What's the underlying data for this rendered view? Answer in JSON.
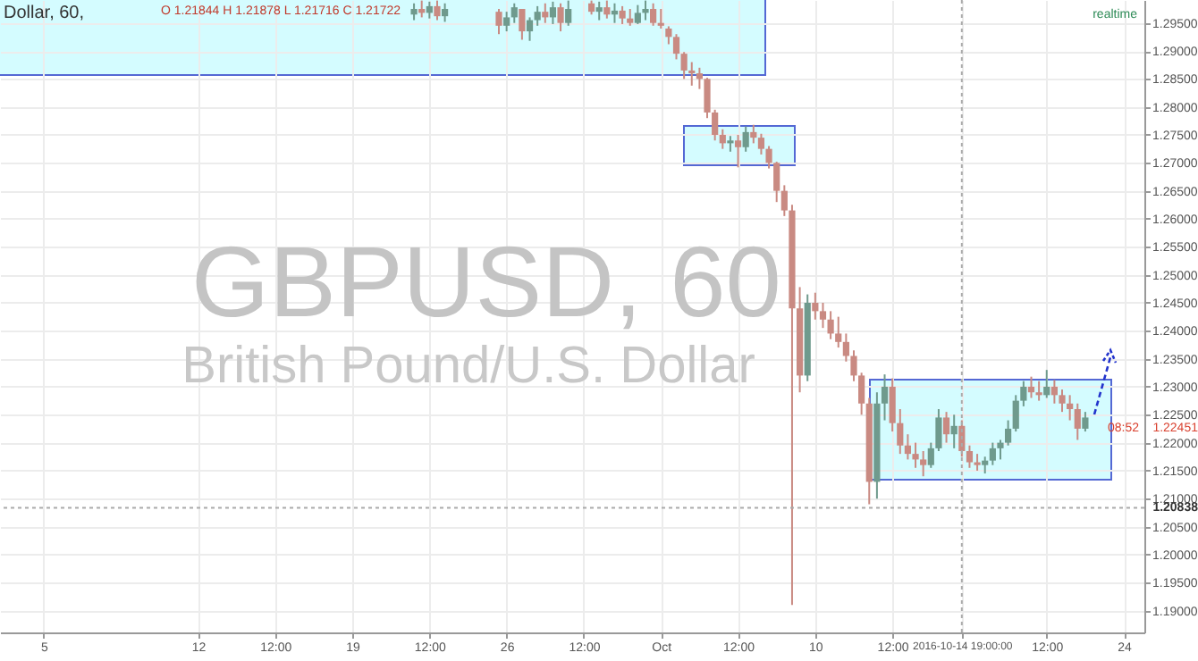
{
  "chart_data": {
    "type": "candlestick",
    "title": "GBPUSD, 60",
    "subtitle": "British Pound/U.S. Dollar",
    "categories": [
      null,
      null,
      null,
      null,
      "5",
      null,
      null,
      null,
      null,
      null,
      null,
      null,
      null,
      null,
      null,
      null,
      null,
      null,
      null,
      null,
      null,
      null,
      null,
      null,
      "12",
      null,
      null,
      null,
      null,
      null,
      null,
      null,
      null,
      null,
      "12:00",
      null,
      null,
      null,
      null,
      null,
      null,
      null,
      null,
      null,
      "19",
      null,
      null,
      null,
      null,
      null,
      null,
      null,
      null,
      null,
      "12:00",
      null,
      null,
      null,
      null,
      null,
      null,
      null,
      null,
      null,
      "26",
      null,
      null,
      null,
      null,
      null,
      null,
      null,
      null,
      null,
      "12:00",
      null,
      null,
      null,
      null,
      null,
      null,
      null,
      null,
      null,
      "Oct",
      null,
      null,
      null,
      null,
      null,
      null,
      null,
      null,
      null,
      "12:00",
      null,
      null,
      null,
      null,
      null,
      null,
      null,
      null,
      null,
      "10",
      null,
      null,
      null,
      null,
      null,
      null,
      null,
      null,
      null,
      "12:00",
      null,
      null,
      null,
      null,
      null,
      null,
      null,
      null,
      "2016-10-14 19:00:00",
      null,
      null,
      null,
      null,
      null,
      null,
      null,
      null,
      null,
      null,
      "12:00",
      null,
      null,
      null,
      null,
      null,
      null,
      null,
      null,
      null,
      "24",
      null
    ],
    "ohlc": [
      null,
      null,
      null,
      null,
      null,
      null,
      null,
      null,
      null,
      null,
      null,
      null,
      null,
      null,
      null,
      null,
      null,
      null,
      null,
      null,
      null,
      null,
      null,
      null,
      null,
      null,
      null,
      null,
      null,
      null,
      null,
      null,
      null,
      null,
      null,
      null,
      null,
      null,
      null,
      null,
      null,
      null,
      null,
      null,
      null,
      null,
      null,
      null,
      null,
      null,
      null,
      null,
      [
        1.2965,
        1.2985,
        1.2955,
        1.2975
      ],
      [
        1.2975,
        1.299,
        1.296,
        1.2968
      ],
      [
        1.2968,
        1.2988,
        1.2958,
        1.298
      ],
      [
        1.298,
        1.299,
        1.2955,
        1.2962
      ],
      [
        1.2962,
        1.2985,
        1.2952,
        1.2975
      ],
      null,
      null,
      null,
      null,
      null,
      null,
      [
        1.297,
        1.2975,
        1.293,
        1.2945
      ],
      [
        1.2945,
        1.297,
        1.2935,
        1.296
      ],
      [
        1.296,
        1.2985,
        1.295,
        1.2978
      ],
      [
        1.2975,
        1.2975,
        1.292,
        1.2935
      ],
      [
        1.2935,
        1.296,
        1.2918,
        1.2955
      ],
      [
        1.2955,
        1.298,
        1.2945,
        1.297
      ],
      [
        1.297,
        1.2985,
        1.295,
        1.296
      ],
      [
        1.296,
        1.2988,
        1.2948,
        1.2978
      ],
      [
        1.2978,
        1.2985,
        1.2935,
        1.295
      ],
      [
        1.295,
        1.299,
        1.2945,
        1.2975
      ],
      null,
      null,
      [
        1.2985,
        1.299,
        1.2965,
        1.297
      ],
      [
        1.297,
        1.2988,
        1.2955,
        1.2978
      ],
      [
        1.2978,
        1.299,
        1.2958,
        1.2965
      ],
      [
        1.2965,
        1.2985,
        1.295,
        1.2972
      ],
      [
        1.2972,
        1.298,
        1.2948,
        1.2958
      ],
      [
        1.2958,
        1.2975,
        1.2945,
        1.295
      ],
      [
        1.295,
        1.2982,
        1.2948,
        1.2968
      ],
      [
        1.2968,
        1.299,
        1.2955,
        1.2975
      ],
      [
        1.2975,
        1.2985,
        1.2945,
        1.295
      ],
      [
        1.295,
        1.2975,
        1.294,
        1.2945
      ],
      [
        1.294,
        1.2944,
        1.2912,
        1.2925
      ],
      [
        1.2925,
        1.293,
        1.2885,
        1.2895
      ],
      [
        1.2895,
        1.2898,
        1.285,
        1.2865
      ],
      [
        1.2865,
        1.288,
        1.2838,
        1.286
      ],
      [
        1.286,
        1.287,
        1.2832,
        1.285
      ],
      [
        1.285,
        1.2852,
        1.278,
        1.279
      ],
      [
        1.279,
        1.2795,
        1.274,
        1.275
      ],
      [
        1.275,
        1.276,
        1.2725,
        1.2735
      ],
      [
        1.2735,
        1.2748,
        1.272,
        1.274
      ],
      [
        1.274,
        1.275,
        1.2692,
        1.2728
      ],
      [
        1.2728,
        1.2765,
        1.272,
        1.2755
      ],
      [
        1.2755,
        1.2768,
        1.2735,
        1.2745
      ],
      [
        1.2745,
        1.2752,
        1.2715,
        1.2725
      ],
      [
        1.2725,
        1.273,
        1.269,
        1.27
      ],
      [
        1.27,
        1.2702,
        1.263,
        1.265
      ],
      [
        1.265,
        1.266,
        1.2605,
        1.2615
      ],
      [
        1.2615,
        1.2625,
        1.191,
        1.244
      ],
      [
        1.244,
        1.2478,
        1.229,
        1.232
      ],
      [
        1.232,
        1.2465,
        1.231,
        1.245
      ],
      [
        1.245,
        1.2468,
        1.242,
        1.2435
      ],
      [
        1.2435,
        1.245,
        1.2405,
        1.242
      ],
      [
        1.242,
        1.2435,
        1.2385,
        1.2395
      ],
      [
        1.2395,
        1.2425,
        1.237,
        1.238
      ],
      [
        1.238,
        1.2395,
        1.2345,
        1.2355
      ],
      [
        1.2355,
        1.2365,
        1.231,
        1.232
      ],
      [
        1.232,
        1.2325,
        1.225,
        1.227
      ],
      [
        1.227,
        1.228,
        1.209,
        1.213
      ],
      [
        1.213,
        1.229,
        1.21,
        1.227
      ],
      [
        1.227,
        1.2322,
        1.224,
        1.23
      ],
      [
        1.23,
        1.2315,
        1.222,
        1.2235
      ],
      [
        1.2235,
        1.226,
        1.218,
        1.2195
      ],
      [
        1.2195,
        1.2215,
        1.217,
        1.218
      ],
      [
        1.218,
        1.22,
        1.2155,
        1.217
      ],
      [
        1.217,
        1.2185,
        1.214,
        1.216
      ],
      [
        1.216,
        1.22,
        1.2155,
        1.219
      ],
      [
        1.219,
        1.226,
        1.2185,
        1.2245
      ],
      [
        1.2245,
        1.2255,
        1.22,
        1.2215
      ],
      [
        1.2215,
        1.225,
        1.219,
        1.223
      ],
      [
        1.223,
        1.224,
        1.2175,
        1.2185
      ],
      [
        1.2185,
        1.2195,
        1.2155,
        1.2165
      ],
      [
        1.2165,
        1.218,
        1.215,
        1.216
      ],
      [
        1.216,
        1.2175,
        1.2145,
        1.2168
      ],
      [
        1.2168,
        1.22,
        1.216,
        1.219
      ],
      [
        1.219,
        1.2205,
        1.217,
        1.22
      ],
      [
        1.22,
        1.224,
        1.2195,
        1.2225
      ],
      [
        1.2225,
        1.2285,
        1.222,
        1.2275
      ],
      [
        1.2275,
        1.231,
        1.2265,
        1.23
      ],
      [
        1.23,
        1.2318,
        1.228,
        1.229
      ],
      [
        1.229,
        1.231,
        1.2275,
        1.2285
      ],
      [
        1.2285,
        1.233,
        1.228,
        1.23
      ],
      [
        1.23,
        1.2312,
        1.227,
        1.2285
      ],
      [
        1.2285,
        1.2295,
        1.2255,
        1.227
      ],
      [
        1.227,
        1.2285,
        1.224,
        1.226
      ],
      [
        1.226,
        1.227,
        1.2205,
        1.2225
      ],
      [
        1.2225,
        1.2255,
        1.222,
        1.2245
      ],
      null,
      null,
      null,
      null,
      null,
      null
    ],
    "ylim": [
      1.1861,
      1.2991
    ],
    "yticks": [
      {
        "value": 1.19,
        "label": "1.19000"
      },
      {
        "value": 1.195,
        "label": "1.19500"
      },
      {
        "value": 1.2,
        "label": "1.20000"
      },
      {
        "value": 1.205,
        "label": "1.20500"
      },
      {
        "value": 1.21,
        "label": "1.21000"
      },
      {
        "value": 1.215,
        "label": "1.21500"
      },
      {
        "value": 1.22,
        "label": "1.22000"
      },
      {
        "value": 1.225,
        "label": "1.22500"
      },
      {
        "value": 1.23,
        "label": "1.23000"
      },
      {
        "value": 1.235,
        "label": "1.23500"
      },
      {
        "value": 1.24,
        "label": "1.24000"
      },
      {
        "value": 1.245,
        "label": "1.24500"
      },
      {
        "value": 1.25,
        "label": "1.25000"
      },
      {
        "value": 1.255,
        "label": "1.25500"
      },
      {
        "value": 1.26,
        "label": "1.26000"
      },
      {
        "value": 1.265,
        "label": "1.26500"
      },
      {
        "value": 1.27,
        "label": "1.27000"
      },
      {
        "value": 1.275,
        "label": "1.27500"
      },
      {
        "value": 1.28,
        "label": "1.28000"
      },
      {
        "value": 1.285,
        "label": "1.28500"
      },
      {
        "value": 1.29,
        "label": "1.29000"
      },
      {
        "value": 1.295,
        "label": "1.29500"
      }
    ],
    "grid": true,
    "ref_lines": [
      {
        "axis": "x",
        "value": "2016-10-14 19:00:00",
        "line_style": "dotted"
      },
      {
        "axis": "y",
        "value": 1.20838,
        "label": "1.20838",
        "line_style": "dotted"
      }
    ],
    "annotations": [
      "Dollar, 60,",
      "O 1.21844 H 1.21878 L 1.21716 C 1.21722",
      "realtime",
      "1.22451",
      "08:52"
    ]
  }
}
